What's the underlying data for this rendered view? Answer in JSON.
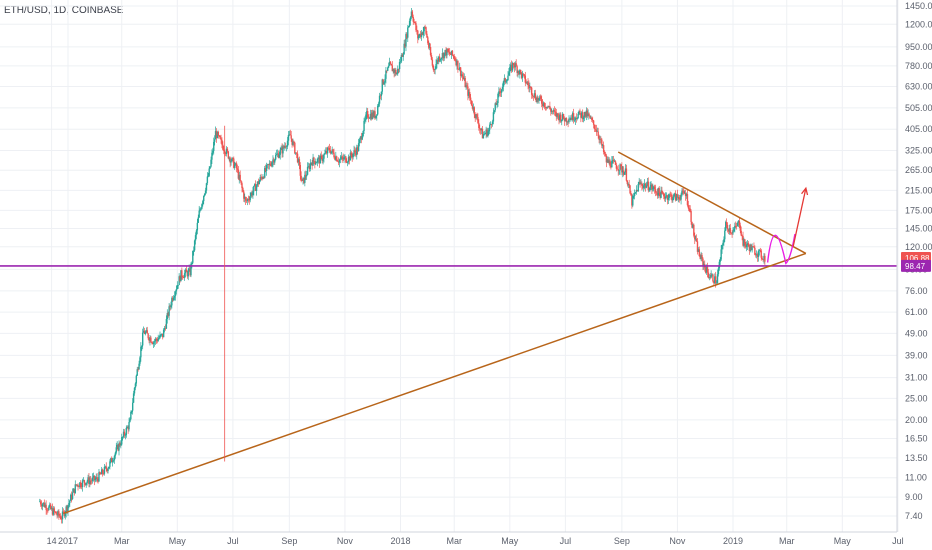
{
  "symbol": "ETH/USD, 1D, COINBASE",
  "colors": {
    "up": "#26a69a",
    "down": "#ef5350",
    "trendline": "#b8651a",
    "support": "#9c27b0",
    "pattern": "#e91ee3",
    "arrow": "#e53935",
    "price_badge": "#ef5350",
    "support_badge": "#9c27b0"
  },
  "chart_data": {
    "type": "candlestick",
    "scale": "log",
    "y_ticks": [
      "1450.00",
      "1200.00",
      "950.00",
      "780.00",
      "630.00",
      "505.00",
      "405.00",
      "325.00",
      "265.00",
      "215.00",
      "175.00",
      "145.00",
      "120.00",
      "95.00",
      "76.00",
      "61.00",
      "49.00",
      "39.00",
      "31.00",
      "25.00",
      "20.00",
      "16.50",
      "13.50",
      "11.00",
      "9.00",
      "7.40"
    ],
    "x_ticks": [
      "14",
      "2017",
      "Mar",
      "May",
      "Jul",
      "Sep",
      "Nov",
      "2018",
      "Mar",
      "May",
      "Jul",
      "Sep",
      "Nov",
      "2019",
      "Mar",
      "May",
      "Jul"
    ],
    "current_price": {
      "label": "106.88",
      "value": 106.88
    },
    "support_level": {
      "label": "98.47",
      "value": 98.47
    },
    "price_path": [
      [
        "2016-12-01",
        8.6
      ],
      [
        "2016-12-10",
        8.1
      ],
      [
        "2016-12-20",
        7.5
      ],
      [
        "2016-12-25",
        7.3
      ],
      [
        "2017-01-01",
        8.3
      ],
      [
        "2017-01-10",
        10.2
      ],
      [
        "2017-01-20",
        10.6
      ],
      [
        "2017-02-01",
        10.8
      ],
      [
        "2017-02-15",
        12.5
      ],
      [
        "2017-02-28",
        16.0
      ],
      [
        "2017-03-10",
        19.5
      ],
      [
        "2017-03-15",
        28.0
      ],
      [
        "2017-03-25",
        50.0
      ],
      [
        "2017-04-05",
        45.0
      ],
      [
        "2017-04-15",
        48.0
      ],
      [
        "2017-04-25",
        70.0
      ],
      [
        "2017-05-05",
        90.0
      ],
      [
        "2017-05-15",
        92.0
      ],
      [
        "2017-05-25",
        170.0
      ],
      [
        "2017-06-05",
        260.0
      ],
      [
        "2017-06-12",
        390.0
      ],
      [
        "2017-06-20",
        340.0
      ],
      [
        "2017-06-28",
        300.0
      ],
      [
        "2017-07-05",
        270.0
      ],
      [
        "2017-07-15",
        190.0
      ],
      [
        "2017-07-25",
        220.0
      ],
      [
        "2017-08-05",
        260.0
      ],
      [
        "2017-08-15",
        300.0
      ],
      [
        "2017-08-25",
        330.0
      ],
      [
        "2017-09-02",
        380.0
      ],
      [
        "2017-09-10",
        300.0
      ],
      [
        "2017-09-15",
        230.0
      ],
      [
        "2017-09-25",
        290.0
      ],
      [
        "2017-10-05",
        295.0
      ],
      [
        "2017-10-15",
        330.0
      ],
      [
        "2017-10-25",
        295.0
      ],
      [
        "2017-11-05",
        300.0
      ],
      [
        "2017-11-15",
        330.0
      ],
      [
        "2017-11-25",
        470.0
      ],
      [
        "2017-12-05",
        470.0
      ],
      [
        "2017-12-12",
        650.0
      ],
      [
        "2017-12-20",
        780.0
      ],
      [
        "2017-12-28",
        720.0
      ],
      [
        "2018-01-05",
        950.0
      ],
      [
        "2018-01-13",
        1380.0
      ],
      [
        "2018-01-20",
        1050.0
      ],
      [
        "2018-01-28",
        1150.0
      ],
      [
        "2018-02-06",
        750.0
      ],
      [
        "2018-02-12",
        850.0
      ],
      [
        "2018-02-20",
        900.0
      ],
      [
        "2018-03-01",
        860.0
      ],
      [
        "2018-03-10",
        700.0
      ],
      [
        "2018-03-20",
        530.0
      ],
      [
        "2018-04-01",
        380.0
      ],
      [
        "2018-04-08",
        400.0
      ],
      [
        "2018-04-20",
        600.0
      ],
      [
        "2018-05-05",
        800.0
      ],
      [
        "2018-05-15",
        700.0
      ],
      [
        "2018-05-30",
        560.0
      ],
      [
        "2018-06-10",
        520.0
      ],
      [
        "2018-06-20",
        470.0
      ],
      [
        "2018-07-01",
        450.0
      ],
      [
        "2018-07-15",
        470.0
      ],
      [
        "2018-07-25",
        470.0
      ],
      [
        "2018-08-05",
        400.0
      ],
      [
        "2018-08-15",
        290.0
      ],
      [
        "2018-08-25",
        280.0
      ],
      [
        "2018-09-05",
        260.0
      ],
      [
        "2018-09-12",
        190.0
      ],
      [
        "2018-09-20",
        230.0
      ],
      [
        "2018-10-01",
        225.0
      ],
      [
        "2018-10-15",
        205.0
      ],
      [
        "2018-11-01",
        200.0
      ],
      [
        "2018-11-10",
        210.0
      ],
      [
        "2018-11-15",
        170.0
      ],
      [
        "2018-11-20",
        130.0
      ],
      [
        "2018-11-25",
        110.0
      ],
      [
        "2018-12-05",
        90.0
      ],
      [
        "2018-12-14",
        84.0
      ],
      [
        "2018-12-24",
        150.0
      ],
      [
        "2019-01-01",
        140.0
      ],
      [
        "2019-01-08",
        155.0
      ],
      [
        "2019-01-12",
        125.0
      ],
      [
        "2019-01-25",
        115.0
      ],
      [
        "2019-02-05",
        107.0
      ]
    ],
    "annotations": {
      "upper_trendline": [
        [
          "2018-08-28",
          320
        ],
        [
          "2019-03-22",
          112
        ]
      ],
      "lower_trendline": [
        [
          "2016-12-27",
          7.6
        ],
        [
          "2019-03-22",
          112
        ]
      ],
      "vertical_marker": {
        "date": "2017-06-22",
        "from": 13.0,
        "to": 420.0
      },
      "projection_arrow": {
        "from": [
          "2019-03-08",
          120
        ],
        "to": [
          "2019-03-22",
          220
        ]
      }
    }
  }
}
